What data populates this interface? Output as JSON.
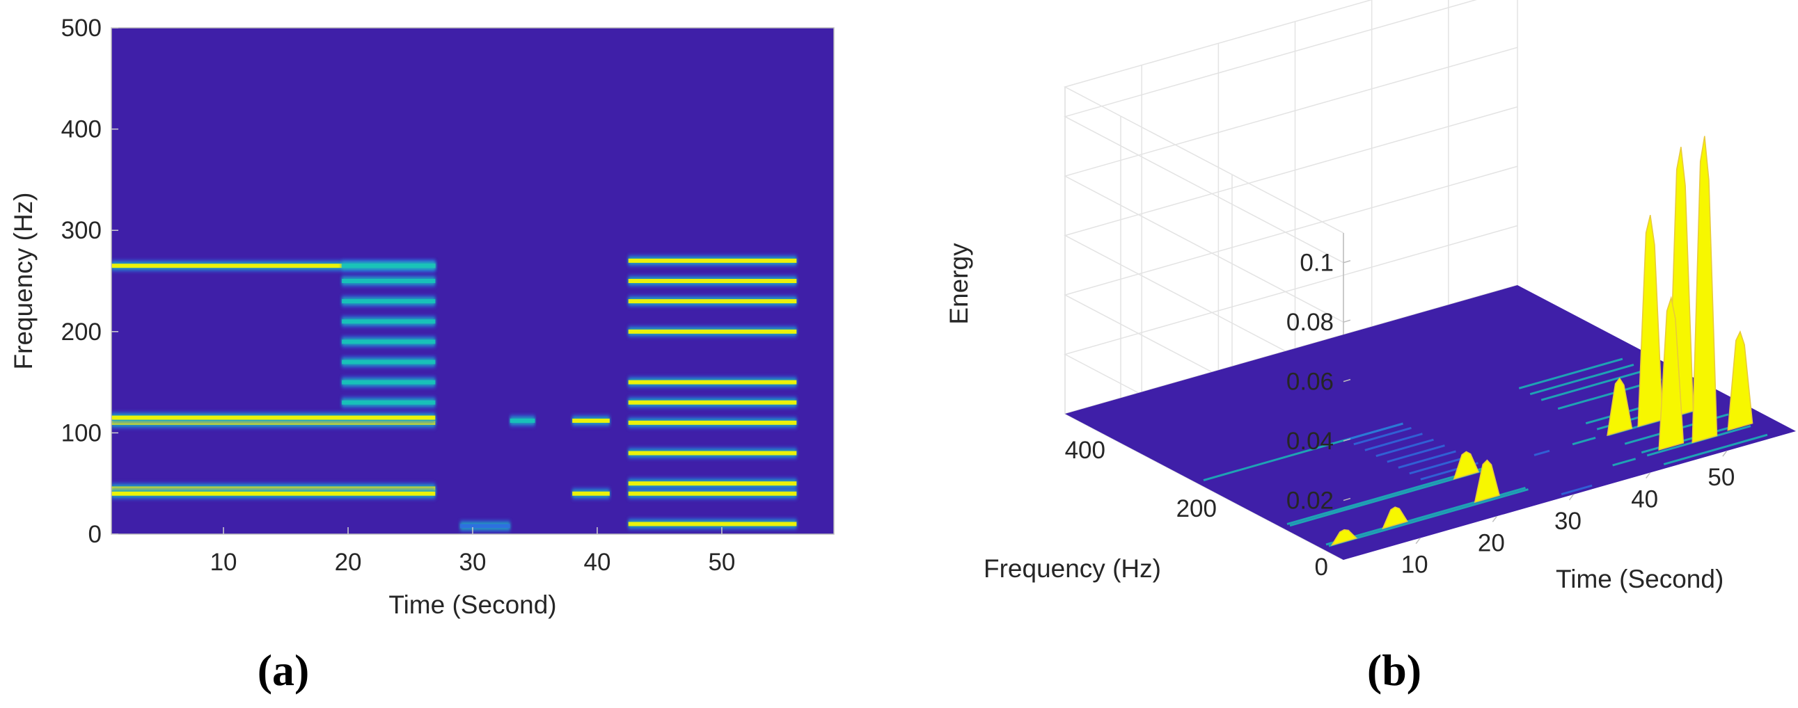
{
  "colors": {
    "background": "#3F1FA8",
    "low": "#3F2AB0",
    "mid_low": "#2E6FE0",
    "mid": "#18C3B8",
    "mid_high": "#E8C93A",
    "high": "#F7F700"
  },
  "chart_data": [
    {
      "panel_label": "(a)",
      "type": "heatmap",
      "title": "",
      "xlabel": "Time (Second)",
      "ylabel": "Frequency (Hz)",
      "xlim": [
        1,
        59
      ],
      "ylim": [
        0,
        500
      ],
      "x_ticks": [
        10,
        20,
        30,
        40,
        50
      ],
      "y_ticks": [
        0,
        100,
        200,
        300,
        400,
        500
      ],
      "colormap": "parula",
      "segments": [
        {
          "t_start": 1,
          "t_end": 27,
          "bands_hz": [
            45,
            40,
            110,
            115,
            265
          ],
          "intensity": "high"
        },
        {
          "t_start": 19.5,
          "t_end": 27,
          "bands_hz": [
            130,
            150,
            170,
            190,
            210,
            230,
            250,
            265
          ],
          "intensity": "medium"
        },
        {
          "t_start": 29,
          "t_end": 33,
          "bands_hz": [
            8
          ],
          "intensity": "low"
        },
        {
          "t_start": 33,
          "t_end": 35,
          "bands_hz": [
            112
          ],
          "intensity": "medium"
        },
        {
          "t_start": 38,
          "t_end": 41,
          "bands_hz": [
            40,
            112
          ],
          "intensity": "high"
        },
        {
          "t_start": 42.5,
          "t_end": 56,
          "bands_hz": [
            10,
            40,
            50,
            80,
            110,
            130,
            150,
            200,
            230,
            250,
            270
          ],
          "intensity": "high"
        }
      ]
    },
    {
      "panel_label": "(b)",
      "type": "surface3d",
      "title": "",
      "xlabel": "Time (Second)",
      "ylabel": "Frequency (Hz)",
      "zlabel": "Energy",
      "x_ticks": [
        10,
        20,
        30,
        40,
        50
      ],
      "y_ticks": [
        0,
        200,
        400
      ],
      "z_ticks": [
        0.02,
        0.04,
        0.06,
        0.08,
        0.1
      ],
      "xlim": [
        0,
        59
      ],
      "ylim": [
        0,
        500
      ],
      "zlim": [
        0,
        0.11
      ],
      "peaks": [
        {
          "time_s": 3,
          "freq_hz": 40,
          "energy": 0.004
        },
        {
          "time_s": 10,
          "freq_hz": 45,
          "energy": 0.006
        },
        {
          "time_s": 22,
          "freq_hz": 45,
          "energy": 0.013
        },
        {
          "time_s": 24,
          "freq_hz": 110,
          "energy": 0.008
        },
        {
          "time_s": 44,
          "freq_hz": 110,
          "energy": 0.018
        },
        {
          "time_s": 46,
          "freq_hz": 45,
          "energy": 0.05
        },
        {
          "time_s": 48,
          "freq_hz": 110,
          "energy": 0.07
        },
        {
          "time_s": 50,
          "freq_hz": 40,
          "energy": 0.102
        },
        {
          "time_s": 52,
          "freq_hz": 110,
          "energy": 0.09
        },
        {
          "time_s": 55,
          "freq_hz": 45,
          "energy": 0.032
        }
      ]
    }
  ]
}
